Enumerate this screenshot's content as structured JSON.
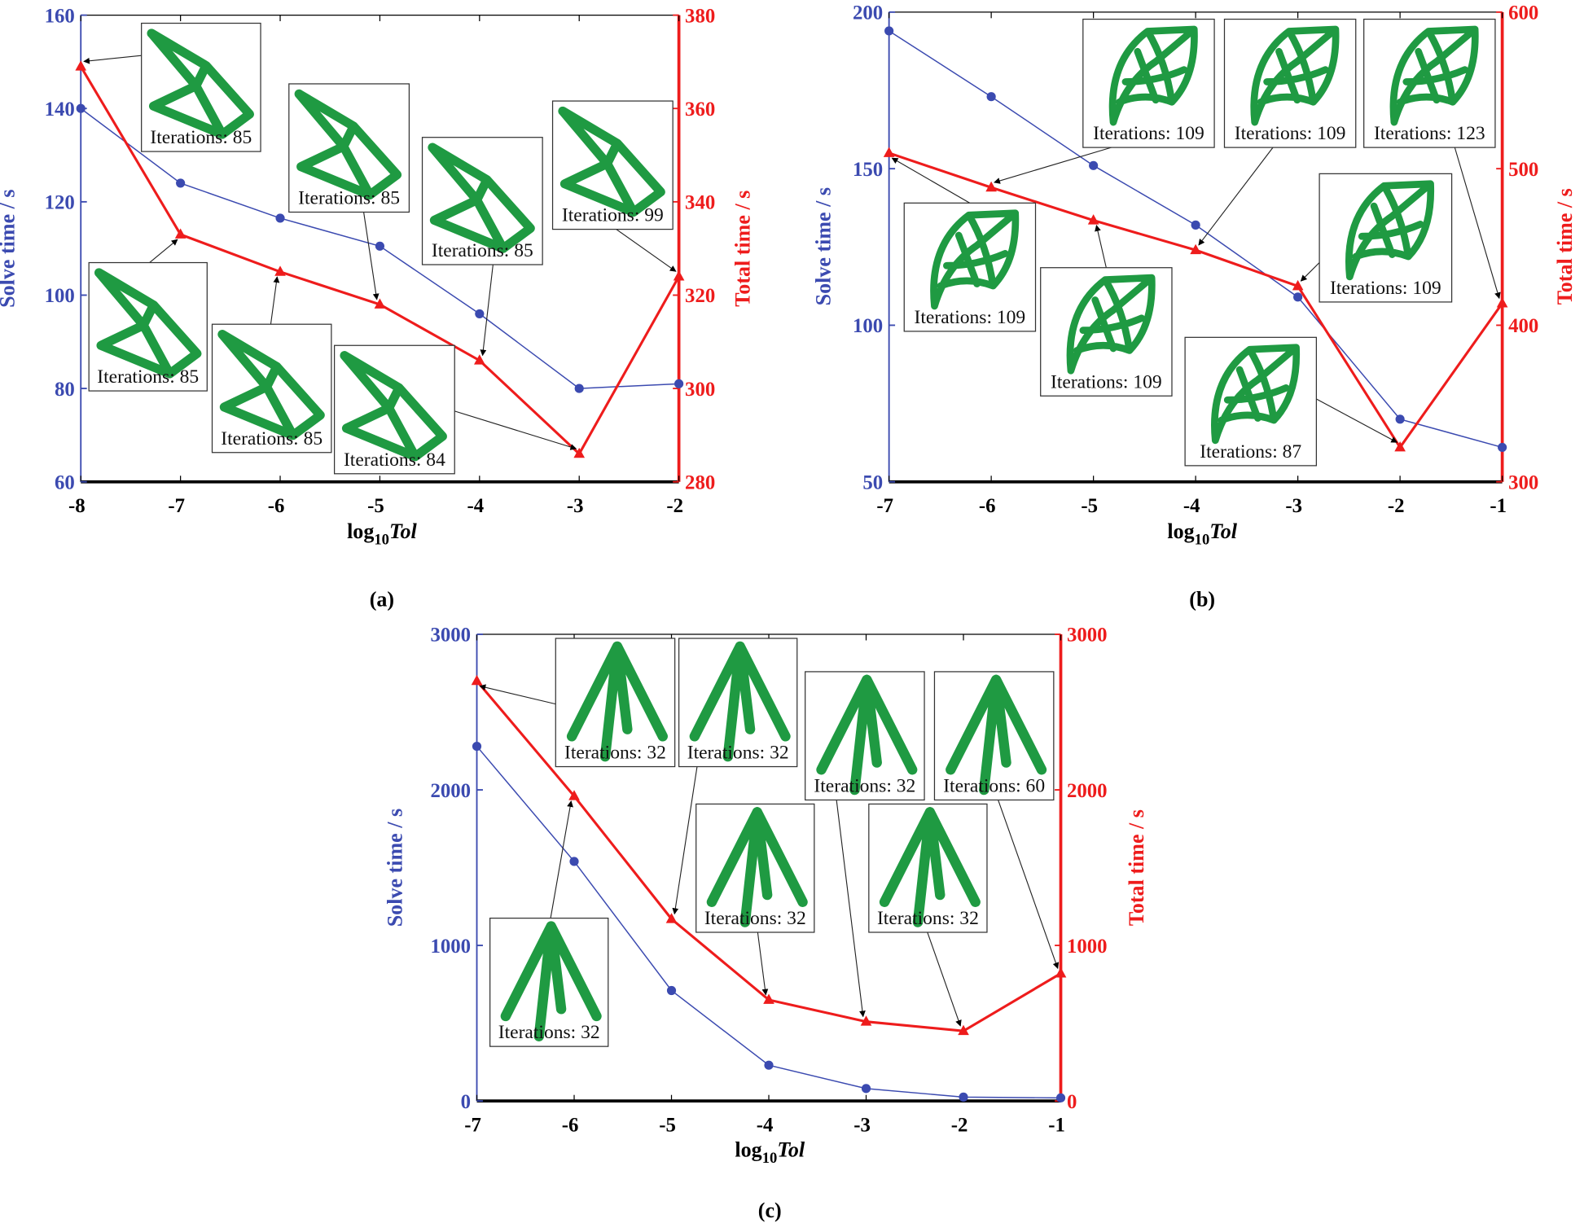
{
  "chart_data": [
    {
      "panel_label": "(a)",
      "type": "line",
      "xlabel": {
        "base": "log",
        "subscript": "10",
        "variable": "Tol"
      },
      "x": [
        -8,
        -7,
        -6,
        -5,
        -4,
        -3,
        -2
      ],
      "xlim": [
        -8,
        -2
      ],
      "x_ticks": [
        "-8",
        "-7",
        "-6",
        "-5",
        "-4",
        "-3",
        "-2"
      ],
      "left_axis": {
        "label": "Solve time / s",
        "range": [
          60,
          160
        ],
        "ticks": [
          "60",
          "80",
          "100",
          "120",
          "140",
          "160"
        ],
        "color": "#3b4ab0"
      },
      "right_axis": {
        "label": "Total time / s",
        "range": [
          280,
          380
        ],
        "ticks": [
          "280",
          "300",
          "320",
          "340",
          "360",
          "380"
        ],
        "color": "#ee1c1c"
      },
      "series": [
        {
          "axis": "left",
          "marker": "circle",
          "color": "#3b4ab0",
          "values": [
            140,
            124,
            116.5,
            110.5,
            96,
            80,
            81
          ]
        },
        {
          "axis": "right",
          "marker": "triangle",
          "color": "#ee1c1c",
          "values": [
            369,
            333,
            325,
            318,
            306,
            286,
            324
          ]
        }
      ],
      "grid": false,
      "inset_shape": "truss",
      "insets": [
        {
          "label": "Iterations: 85",
          "points_to_x": -8
        },
        {
          "label": "Iterations: 85",
          "points_to_x": -7
        },
        {
          "label": "Iterations: 85",
          "points_to_x": -5
        },
        {
          "label": "Iterations: 85",
          "points_to_x": -6
        },
        {
          "label": "Iterations: 85",
          "points_to_x": -4
        },
        {
          "label": "Iterations: 84",
          "points_to_x": -3
        },
        {
          "label": "Iterations: 99",
          "points_to_x": -2
        }
      ]
    },
    {
      "panel_label": "(b)",
      "type": "line",
      "xlabel": {
        "base": "log",
        "subscript": "10",
        "variable": "Tol"
      },
      "x": [
        -7,
        -6,
        -5,
        -4,
        -3,
        -2,
        -1
      ],
      "xlim": [
        -7,
        -1
      ],
      "x_ticks": [
        "-7",
        "-6",
        "-5",
        "-4",
        "-3",
        "-2",
        "-1"
      ],
      "left_axis": {
        "label": "Solve time / s",
        "range": [
          50,
          200
        ],
        "ticks": [
          "50",
          "100",
          "150",
          "200"
        ],
        "color": "#3b4ab0"
      },
      "right_axis": {
        "label": "Total time / s",
        "range": [
          300,
          600
        ],
        "ticks": [
          "300",
          "400",
          "500",
          "600"
        ],
        "color": "#ee1c1c"
      },
      "series": [
        {
          "axis": "left",
          "marker": "circle",
          "color": "#3b4ab0",
          "values": [
            194,
            173,
            151,
            132,
            109,
            70,
            61
          ]
        },
        {
          "axis": "right",
          "marker": "triangle",
          "color": "#ee1c1c",
          "values": [
            510,
            488,
            467,
            448,
            425,
            322,
            414
          ]
        }
      ],
      "grid": false,
      "inset_shape": "arch",
      "insets": [
        {
          "label": "Iterations: 109",
          "points_to_x": -6
        },
        {
          "label": "Iterations: 109",
          "points_to_x": -4
        },
        {
          "label": "Iterations: 123",
          "points_to_x": -1
        },
        {
          "label": "Iterations: 109",
          "points_to_x": -7
        },
        {
          "label": "Iterations: 109",
          "points_to_x": -5
        },
        {
          "label": "Iterations: 109",
          "points_to_x": -3
        },
        {
          "label": "Iterations: 87",
          "points_to_x": -2
        }
      ]
    },
    {
      "panel_label": "(c)",
      "type": "line",
      "xlabel": {
        "base": "log",
        "subscript": "10",
        "variable": "Tol"
      },
      "x": [
        -7,
        -6,
        -5,
        -4,
        -3,
        -2,
        -1
      ],
      "xlim": [
        -7,
        -1
      ],
      "x_ticks": [
        "-7",
        "-6",
        "-5",
        "-4",
        "-3",
        "-2",
        "-1"
      ],
      "left_axis": {
        "label": "Solve time / s",
        "range": [
          0,
          3000
        ],
        "ticks": [
          "0",
          "1000",
          "2000",
          "3000"
        ],
        "color": "#3b4ab0"
      },
      "right_axis": {
        "label": "Total time / s",
        "range": [
          0,
          3000
        ],
        "ticks": [
          "0",
          "1000",
          "2000",
          "3000"
        ],
        "color": "#ee1c1c"
      },
      "series": [
        {
          "axis": "left",
          "marker": "circle",
          "color": "#3b4ab0",
          "values": [
            2280,
            1540,
            710,
            230,
            80,
            25,
            20
          ]
        },
        {
          "axis": "right",
          "marker": "triangle",
          "color": "#ee1c1c",
          "values": [
            2700,
            1960,
            1170,
            650,
            510,
            450,
            820
          ]
        }
      ],
      "grid": false,
      "inset_shape": "tree",
      "insets": [
        {
          "label": "Iterations: 32",
          "points_to_x": -7
        },
        {
          "label": "Iterations: 32",
          "points_to_x": -5
        },
        {
          "label": "Iterations: 32",
          "points_to_x": -3
        },
        {
          "label": "Iterations: 60",
          "points_to_x": -1
        },
        {
          "label": "Iterations: 32",
          "points_to_x": -4
        },
        {
          "label": "Iterations: 32",
          "points_to_x": -2
        },
        {
          "label": "Iterations: 32",
          "points_to_x": -6
        }
      ]
    }
  ]
}
